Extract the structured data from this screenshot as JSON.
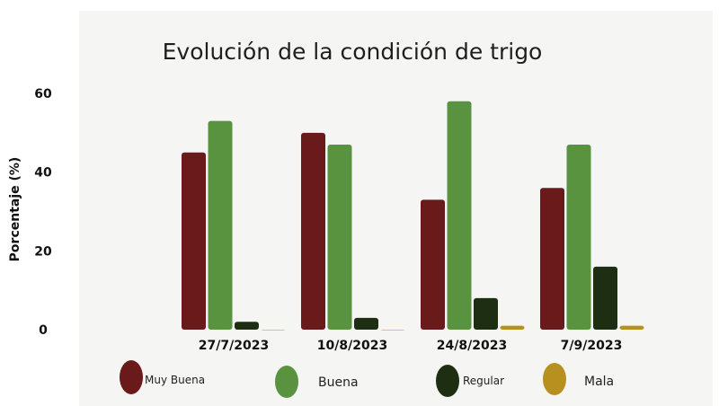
{
  "chart_data": {
    "type": "bar",
    "title": "Evolución de la condición de trigo",
    "ylabel": "Porcentaje (%)",
    "xlabel": "",
    "ylim": [
      0,
      60
    ],
    "yticks": [
      0,
      20,
      40,
      60
    ],
    "grid": false,
    "legend_position": "bottom",
    "categories": [
      "27/7/2023",
      "10/8/2023",
      "24/8/2023",
      "7/9/2023"
    ],
    "series": [
      {
        "name": "Muy Buena",
        "color": "#6b1a1c",
        "values": [
          45,
          50,
          33,
          36
        ]
      },
      {
        "name": "Buena",
        "color": "#5a9340",
        "values": [
          53,
          47,
          58,
          47
        ]
      },
      {
        "name": "Regular",
        "color": "#1e2e13",
        "values": [
          2,
          3,
          8,
          16
        ]
      },
      {
        "name": "Mala",
        "color": "#b8901f",
        "values": [
          0,
          0,
          1,
          1
        ]
      }
    ]
  }
}
